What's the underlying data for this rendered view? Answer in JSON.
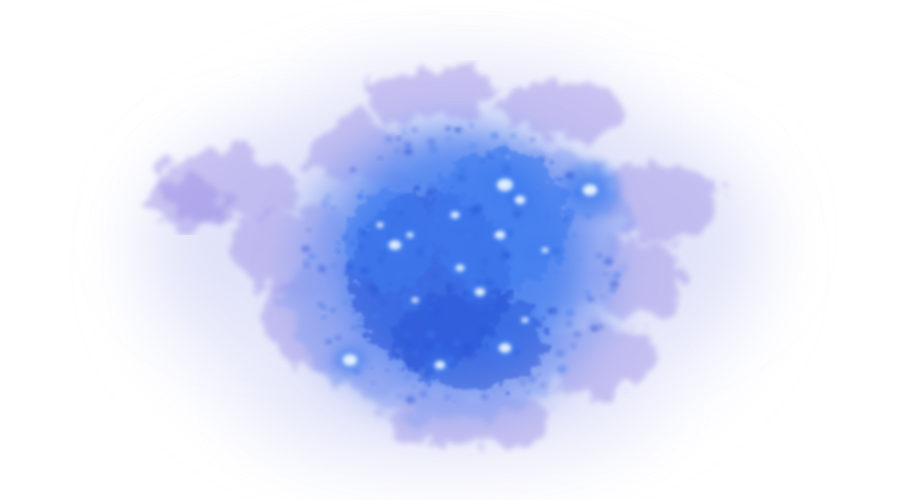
{
  "image": {
    "subject": "nebula",
    "colors": {
      "background": "#ffffff",
      "outer_haze": "#d8dcf8",
      "mid_glow": "#8ea4f2",
      "core_blue": "#3f7df0",
      "deep_blue": "#2a55d8",
      "sparkle": "#e8f6ff",
      "violet_wisps": "#9a8ee6"
    }
  }
}
